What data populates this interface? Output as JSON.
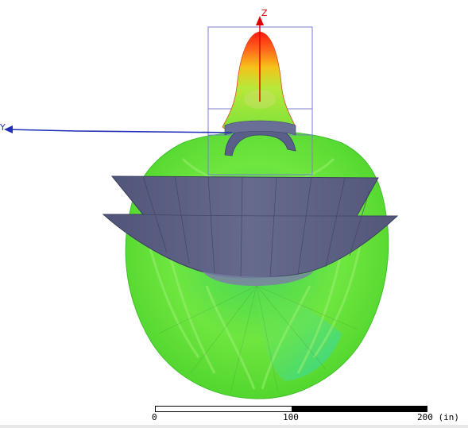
{
  "viewport": {
    "axes": {
      "z_label": "Z",
      "y_label": "Y"
    },
    "scale": {
      "tick_0": "0",
      "tick_1": "100",
      "tick_2": "200 (in)"
    },
    "colors": {
      "background": "#ffffff",
      "axis": "#1f2fb8",
      "z_axis": "#e00000",
      "reflector": "#5a5f80",
      "pattern_main": "#66e24a",
      "pattern_peak": "#ff2a1a"
    }
  }
}
